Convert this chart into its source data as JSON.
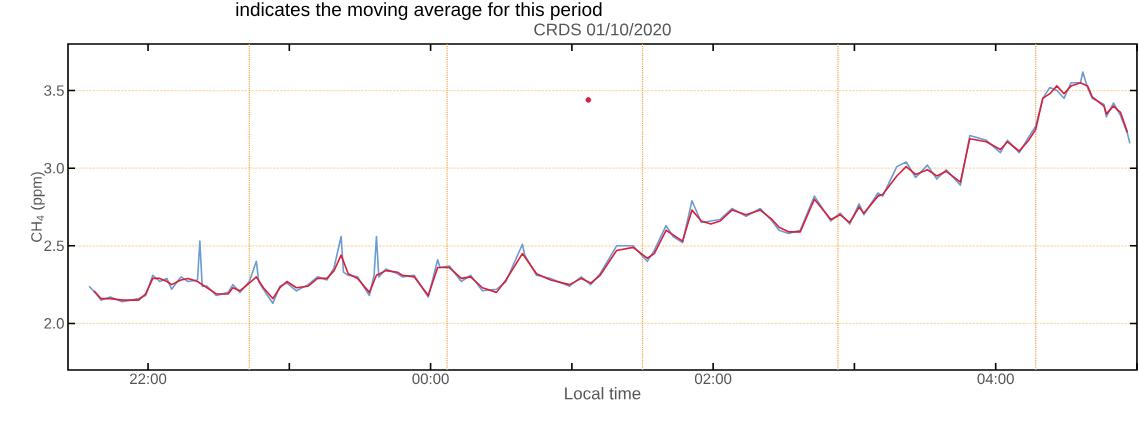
{
  "chart_data": {
    "type": "line",
    "title": "CRDS 01/10/2020",
    "xlabel": "Local time",
    "ylabel": "CH$_{4}$ (ppm)",
    "annotations": [
      "indicates the moving average for this period"
    ],
    "xlim": [
      "2020-10-01T21:26",
      "2020-10-02T05:00"
    ],
    "ylim": [
      1.7,
      3.8
    ],
    "xticks": [
      {
        "value": "2020-10-01T22:00",
        "label": "22:00"
      },
      {
        "value": "2020-10-01T23:00",
        "label": null
      },
      {
        "value": "2020-10-02T00:00",
        "label": "00:00"
      },
      {
        "value": "2020-10-02T01:00",
        "label": null
      },
      {
        "value": "2020-10-02T02:00",
        "label": "02:00"
      },
      {
        "value": "2020-10-02T03:00",
        "label": null
      },
      {
        "value": "2020-10-02T04:00",
        "label": "04:00"
      },
      {
        "value": "2020-10-02T05:00",
        "label": null
      }
    ],
    "yticks": [
      {
        "value": 2,
        "label": "2.0"
      },
      {
        "value": 2.5,
        "label": "2.5"
      },
      {
        "value": 3,
        "label": "3.0"
      },
      {
        "value": 3.5,
        "label": "3.5"
      }
    ],
    "grid": "y",
    "line_style": "solid",
    "ref_lines": [
      {
        "axis": "x",
        "value": "2020-10-01T22:43",
        "color": "#f0a640",
        "line_style": "dotted"
      },
      {
        "axis": "x",
        "value": "2020-10-02T00:07",
        "color": "#f0a640",
        "line_style": "dotted"
      },
      {
        "axis": "x",
        "value": "2020-10-02T01:30",
        "color": "#f0a640",
        "line_style": "dotted"
      },
      {
        "axis": "x",
        "value": "2020-10-02T02:53",
        "color": "#f0a640",
        "line_style": "dotted"
      },
      {
        "axis": "x",
        "value": "2020-10-02T04:17",
        "color": "#f0a640",
        "line_style": "dotted"
      }
    ],
    "series": [
      {
        "type": "line",
        "color": "#6b9bd1",
        "x": [
          "2020-10-01T21:35",
          "2020-10-01T21:38",
          "2020-10-01T21:40",
          "2020-10-01T21:44",
          "2020-10-01T21:49",
          "2020-10-01T21:56",
          "2020-10-01T21:59",
          "2020-10-01T22:02",
          "2020-10-01T22:05",
          "2020-10-01T22:08",
          "2020-10-01T22:10",
          "2020-10-01T22:14",
          "2020-10-01T22:17",
          "2020-10-01T22:21",
          "2020-10-01T22:22",
          "2020-10-01T22:23",
          "2020-10-01T22:25",
          "2020-10-01T22:29",
          "2020-10-01T22:34",
          "2020-10-01T22:36",
          "2020-10-01T22:39",
          "2020-10-01T22:43",
          "2020-10-01T22:46",
          "2020-10-01T22:47",
          "2020-10-01T22:49",
          "2020-10-01T22:53",
          "2020-10-01T22:56",
          "2020-10-01T22:59",
          "2020-10-01T23:03",
          "2020-10-01T23:08",
          "2020-10-01T23:12",
          "2020-10-01T23:16",
          "2020-10-01T23:19",
          "2020-10-01T23:22",
          "2020-10-01T23:23",
          "2020-10-01T23:25",
          "2020-10-01T23:29",
          "2020-10-01T23:34",
          "2020-10-01T23:36",
          "2020-10-01T23:37",
          "2020-10-01T23:38",
          "2020-10-01T23:41",
          "2020-10-01T23:46",
          "2020-10-01T23:48",
          "2020-10-01T23:53",
          "2020-10-01T23:59",
          "2020-10-02T00:03",
          "2020-10-02T00:04",
          "2020-10-02T00:08",
          "2020-10-02T00:13",
          "2020-10-02T00:17",
          "2020-10-02T00:22",
          "2020-10-02T00:28",
          "2020-10-02T00:32",
          "2020-10-02T00:39",
          "2020-10-02T00:40",
          "2020-10-02T00:45",
          "2020-10-02T00:51",
          "2020-10-02T00:59",
          "2020-10-02T01:04",
          "2020-10-02T01:08",
          "2020-10-02T01:12",
          "2020-10-02T01:19",
          "2020-10-02T01:26",
          "2020-10-02T01:32",
          "2020-10-02T01:35",
          "2020-10-02T01:40",
          "2020-10-02T01:43",
          "2020-10-02T01:47",
          "2020-10-02T01:51",
          "2020-10-02T01:55",
          "2020-10-02T01:59",
          "2020-10-02T02:03",
          "2020-10-02T02:08",
          "2020-10-02T02:14",
          "2020-10-02T02:20",
          "2020-10-02T02:25",
          "2020-10-02T02:28",
          "2020-10-02T02:32",
          "2020-10-02T02:37",
          "2020-10-02T02:43",
          "2020-10-02T02:50",
          "2020-10-02T02:54",
          "2020-10-02T02:58",
          "2020-10-02T03:02",
          "2020-10-02T03:04",
          "2020-10-02T03:10",
          "2020-10-02T03:12",
          "2020-10-02T03:18",
          "2020-10-02T03:22",
          "2020-10-02T03:26",
          "2020-10-02T03:31",
          "2020-10-02T03:35",
          "2020-10-02T03:39",
          "2020-10-02T03:45",
          "2020-10-02T03:49",
          "2020-10-02T03:56",
          "2020-10-02T04:02",
          "2020-10-02T04:05",
          "2020-10-02T04:10",
          "2020-10-02T04:14",
          "2020-10-02T04:17",
          "2020-10-02T04:20",
          "2020-10-02T04:23",
          "2020-10-02T04:26",
          "2020-10-02T04:29",
          "2020-10-02T04:32",
          "2020-10-02T04:36",
          "2020-10-02T04:37",
          "2020-10-02T04:39",
          "2020-10-02T04:41",
          "2020-10-02T04:46",
          "2020-10-02T04:47",
          "2020-10-02T04:50",
          "2020-10-02T04:53",
          "2020-10-02T04:56",
          "2020-10-02T04:57"
        ],
        "values": [
          2.24,
          2.19,
          2.15,
          2.17,
          2.14,
          2.16,
          2.18,
          2.31,
          2.27,
          2.29,
          2.22,
          2.3,
          2.27,
          2.28,
          2.53,
          2.24,
          2.24,
          2.18,
          2.2,
          2.25,
          2.2,
          2.27,
          2.4,
          2.27,
          2.22,
          2.13,
          2.24,
          2.26,
          2.21,
          2.25,
          2.3,
          2.28,
          2.36,
          2.56,
          2.33,
          2.31,
          2.3,
          2.18,
          2.31,
          2.56,
          2.3,
          2.35,
          2.32,
          2.3,
          2.31,
          2.17,
          2.41,
          2.36,
          2.37,
          2.27,
          2.31,
          2.21,
          2.22,
          2.27,
          2.51,
          2.44,
          2.31,
          2.29,
          2.24,
          2.3,
          2.25,
          2.32,
          2.5,
          2.5,
          2.4,
          2.47,
          2.63,
          2.56,
          2.52,
          2.79,
          2.65,
          2.66,
          2.67,
          2.74,
          2.69,
          2.74,
          2.66,
          2.6,
          2.58,
          2.6,
          2.82,
          2.66,
          2.71,
          2.64,
          2.77,
          2.7,
          2.84,
          2.82,
          3.01,
          3.04,
          2.94,
          3.02,
          2.93,
          2.99,
          2.89,
          3.21,
          3.18,
          3.1,
          3.18,
          3.1,
          3.2,
          3.27,
          3.45,
          3.52,
          3.5,
          3.45,
          3.55,
          3.55,
          3.62,
          3.52,
          3.45,
          3.41,
          3.33,
          3.42,
          3.34,
          3.22,
          3.16
        ]
      },
      {
        "type": "line",
        "color": "#d8203a",
        "x": [
          "2020-10-01T21:37",
          "2020-10-01T21:40",
          "2020-10-01T21:44",
          "2020-10-01T21:49",
          "2020-10-01T21:56",
          "2020-10-01T21:59",
          "2020-10-01T22:02",
          "2020-10-01T22:05",
          "2020-10-01T22:08",
          "2020-10-01T22:10",
          "2020-10-01T22:14",
          "2020-10-01T22:17",
          "2020-10-01T22:21",
          "2020-10-01T22:25",
          "2020-10-01T22:29",
          "2020-10-01T22:34",
          "2020-10-01T22:36",
          "2020-10-01T22:39",
          "2020-10-01T22:43",
          "2020-10-01T22:46",
          "2020-10-01T22:49",
          "2020-10-01T22:53",
          "2020-10-01T22:56",
          "2020-10-01T22:59",
          "2020-10-01T23:03",
          "2020-10-01T23:08",
          "2020-10-01T23:12",
          "2020-10-01T23:16",
          "2020-10-01T23:19",
          "2020-10-01T23:22",
          "2020-10-01T23:25",
          "2020-10-01T23:29",
          "2020-10-01T23:34",
          "2020-10-01T23:37",
          "2020-10-01T23:41",
          "2020-10-01T23:46",
          "2020-10-01T23:48",
          "2020-10-01T23:53",
          "2020-10-01T23:59",
          "2020-10-02T00:03",
          "2020-10-02T00:08",
          "2020-10-02T00:13",
          "2020-10-02T00:17",
          "2020-10-02T00:22",
          "2020-10-02T00:28",
          "2020-10-02T00:32",
          "2020-10-02T00:39",
          "2020-10-02T00:45",
          "2020-10-02T00:51",
          "2020-10-02T00:59",
          "2020-10-02T01:04",
          "2020-10-02T01:08",
          "2020-10-02T01:12",
          "2020-10-02T01:19",
          "2020-10-02T01:26",
          "2020-10-02T01:32",
          "2020-10-02T01:35",
          "2020-10-02T01:40",
          "2020-10-02T01:43",
          "2020-10-02T01:47",
          "2020-10-02T01:51",
          "2020-10-02T01:55",
          "2020-10-02T01:59",
          "2020-10-02T02:03",
          "2020-10-02T02:08",
          "2020-10-02T02:14",
          "2020-10-02T02:20",
          "2020-10-02T02:25",
          "2020-10-02T02:28",
          "2020-10-02T02:32",
          "2020-10-02T02:37",
          "2020-10-02T02:43",
          "2020-10-02T02:50",
          "2020-10-02T02:54",
          "2020-10-02T02:58",
          "2020-10-02T03:02",
          "2020-10-02T03:04",
          "2020-10-02T03:10",
          "2020-10-02T03:12",
          "2020-10-02T03:18",
          "2020-10-02T03:22",
          "2020-10-02T03:26",
          "2020-10-02T03:31",
          "2020-10-02T03:35",
          "2020-10-02T03:39",
          "2020-10-02T03:45",
          "2020-10-02T03:49",
          "2020-10-02T03:56",
          "2020-10-02T04:02",
          "2020-10-02T04:05",
          "2020-10-02T04:10",
          "2020-10-02T04:14",
          "2020-10-02T04:17",
          "2020-10-02T04:20",
          "2020-10-02T04:23",
          "2020-10-02T04:26",
          "2020-10-02T04:29",
          "2020-10-02T04:32",
          "2020-10-02T04:36",
          "2020-10-02T04:39",
          "2020-10-02T04:41",
          "2020-10-02T04:46",
          "2020-10-02T04:47",
          "2020-10-02T04:50",
          "2020-10-02T04:53",
          "2020-10-02T04:56"
        ],
        "values": [
          2.21,
          2.16,
          2.16,
          2.15,
          2.15,
          2.19,
          2.29,
          2.29,
          2.27,
          2.25,
          2.28,
          2.29,
          2.27,
          2.23,
          2.19,
          2.19,
          2.23,
          2.21,
          2.26,
          2.3,
          2.23,
          2.16,
          2.23,
          2.27,
          2.23,
          2.24,
          2.29,
          2.29,
          2.34,
          2.44,
          2.32,
          2.29,
          2.2,
          2.31,
          2.34,
          2.33,
          2.31,
          2.3,
          2.18,
          2.36,
          2.36,
          2.29,
          2.3,
          2.23,
          2.2,
          2.28,
          2.45,
          2.32,
          2.28,
          2.25,
          2.29,
          2.26,
          2.31,
          2.47,
          2.49,
          2.42,
          2.45,
          2.6,
          2.57,
          2.53,
          2.73,
          2.66,
          2.64,
          2.66,
          2.73,
          2.7,
          2.73,
          2.67,
          2.62,
          2.59,
          2.59,
          2.8,
          2.67,
          2.7,
          2.65,
          2.75,
          2.71,
          2.82,
          2.83,
          2.95,
          3.01,
          2.96,
          2.99,
          2.95,
          2.98,
          2.91,
          3.19,
          3.17,
          3.12,
          3.17,
          3.11,
          3.18,
          3.25,
          3.45,
          3.48,
          3.53,
          3.48,
          3.53,
          3.55,
          3.53,
          3.46,
          3.4,
          3.35,
          3.4,
          3.36,
          3.23
        ]
      },
      {
        "type": "scatter",
        "color": "#d8203a",
        "x": [
          "2020-10-02T01:07"
        ],
        "values": [
          3.44
        ]
      }
    ]
  }
}
